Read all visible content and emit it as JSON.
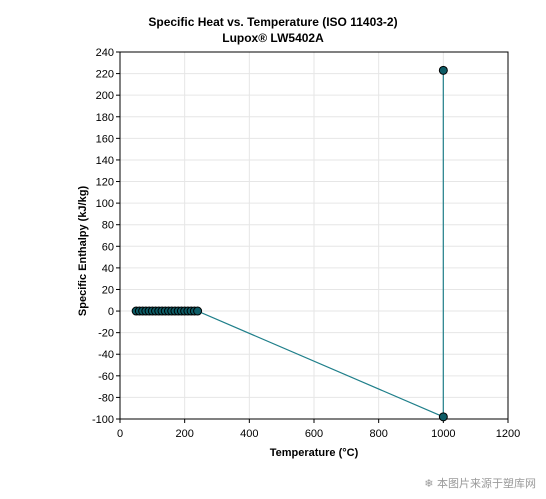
{
  "chart_data": {
    "type": "line",
    "title": "Specific Heat vs. Temperature (ISO 11403-2)",
    "subtitle": "Lupox® LW5402A",
    "xlabel": "Temperature (°C)",
    "ylabel": "Specific Enthalpy (kJ/kg)",
    "xlim": [
      0,
      1200
    ],
    "ylim": [
      -100,
      240
    ],
    "xticks": [
      0,
      200,
      400,
      600,
      800,
      1000,
      1200
    ],
    "yticks": [
      -100,
      -80,
      -60,
      -40,
      -20,
      0,
      20,
      40,
      60,
      80,
      100,
      120,
      140,
      160,
      180,
      200,
      220,
      240
    ],
    "grid": true,
    "legend": "none",
    "series_color": "#1f7f8a",
    "marker_fill": "#0d5c66",
    "series": [
      {
        "x": [
          50,
          60,
          70,
          80,
          90,
          100,
          110,
          120,
          130,
          140,
          150,
          160,
          170,
          180,
          190,
          200,
          210,
          220,
          230,
          240,
          1000,
          1000
        ],
        "y": [
          0,
          0,
          0,
          0,
          0,
          0,
          0,
          0,
          0,
          0,
          0,
          0,
          0,
          0,
          0,
          0,
          0,
          0,
          0,
          0,
          -98,
          223
        ]
      }
    ]
  },
  "watermark": "本图片来源于塑库网"
}
